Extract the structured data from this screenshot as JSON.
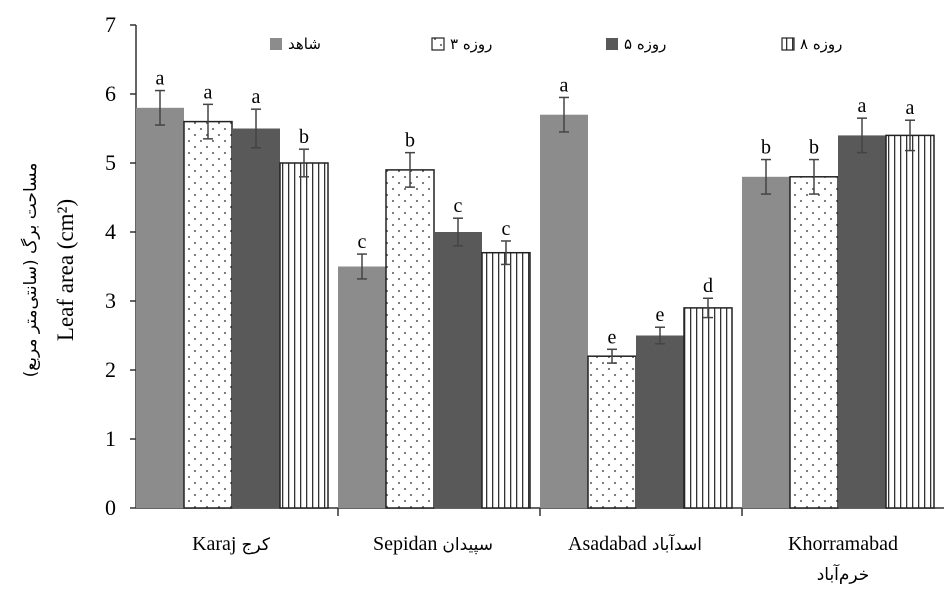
{
  "chart_data": {
    "type": "bar",
    "ylabel": "Leaf area (cm²)",
    "ylabel_secondary": "مساحت برگ (سانتی‌متر مربع)",
    "ylim": [
      0,
      7
    ],
    "yticks": [
      "0",
      "1",
      "2",
      "3",
      "4",
      "5",
      "6",
      "7"
    ],
    "grid": false,
    "legend_position": "top",
    "categories": [
      {
        "en": "Karaj",
        "fa": "کرج"
      },
      {
        "en": "Sepidan",
        "fa": "سپیدان"
      },
      {
        "en": "Asadabad",
        "fa": "اسدآباد"
      },
      {
        "en": "Khorramabad",
        "fa": "خرم‌آباد"
      }
    ],
    "series": [
      {
        "name": "شاهد",
        "pattern": "solid-gray",
        "color": "#8c8c8c",
        "values": [
          5.8,
          3.5,
          5.7,
          4.8
        ],
        "errors": [
          0.25,
          0.18,
          0.25,
          0.25
        ],
        "letters": [
          "a",
          "c",
          "a",
          "b"
        ]
      },
      {
        "name": "۳ روزه",
        "pattern": "dots",
        "color": "#ffffff",
        "values": [
          5.6,
          4.9,
          2.2,
          4.8
        ],
        "errors": [
          0.25,
          0.25,
          0.1,
          0.25
        ],
        "letters": [
          "a",
          "b",
          "e",
          "b"
        ]
      },
      {
        "name": "۵ روزه",
        "pattern": "solid-dark",
        "color": "#595959",
        "values": [
          5.5,
          4.0,
          2.5,
          5.4
        ],
        "errors": [
          0.28,
          0.2,
          0.12,
          0.25
        ],
        "letters": [
          "a",
          "c",
          "e",
          "a"
        ]
      },
      {
        "name": "۸ روزه",
        "pattern": "vertical-stripes",
        "color": "#ffffff",
        "values": [
          5.0,
          3.7,
          2.9,
          5.4
        ],
        "errors": [
          0.2,
          0.17,
          0.14,
          0.22
        ],
        "letters": [
          "b",
          "c",
          "d",
          "a"
        ]
      }
    ]
  }
}
